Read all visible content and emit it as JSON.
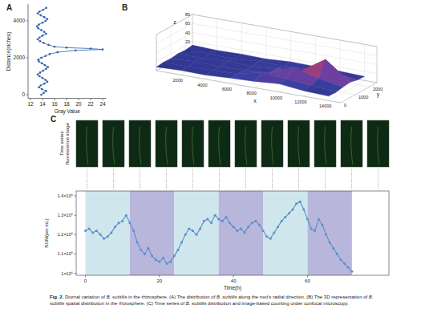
{
  "chart_data": [
    {
      "type": "scatter",
      "panel": "A",
      "x_label": "Gray Value",
      "y_label": "Distance(inches)",
      "color": "#2f5fae",
      "marker": "circle",
      "line_style": "solid",
      "x": [
        13.8,
        14.2,
        14.6,
        13.9,
        13.4,
        13.7,
        14.3,
        14.8,
        14.5,
        14.0,
        13.5,
        13.2,
        13.6,
        14.1,
        14.6,
        14.9,
        14.4,
        13.9,
        13.4,
        13.3,
        13.8,
        14.5,
        15.2,
        16.5,
        19.5,
        24.0,
        22.0,
        18.0,
        16.0,
        15.0,
        14.2,
        13.6,
        13.2,
        13.5,
        14.0,
        14.6,
        14.3,
        13.8,
        13.3,
        13.1,
        13.4,
        14.0,
        14.5,
        14.8,
        14.3,
        13.7,
        13.2,
        13.5,
        14.1,
        14.6
      ],
      "values": [
        0,
        100,
        200,
        300,
        400,
        500,
        600,
        700,
        800,
        900,
        1000,
        1100,
        1200,
        1300,
        1400,
        1500,
        1600,
        1700,
        1800,
        1900,
        2000,
        2100,
        2200,
        2300,
        2400,
        2450,
        2500,
        2550,
        2600,
        2700,
        2800,
        2900,
        3000,
        3100,
        3200,
        3300,
        3400,
        3500,
        3600,
        3700,
        3800,
        3900,
        4000,
        4100,
        4200,
        4300,
        4400,
        4500,
        4600,
        4700
      ],
      "xlim": [
        11.6,
        24.6
      ],
      "xticks": [
        12,
        14,
        16,
        18,
        20,
        22,
        24
      ],
      "ylim": [
        -200,
        4900
      ],
      "yticks": [
        0,
        2000,
        4000
      ]
    },
    {
      "type": "surface",
      "panel": "B",
      "x_label": "x",
      "y_label": "y",
      "z_label": "z",
      "x": [
        0,
        2000,
        4000,
        6000,
        8000,
        10000,
        12000,
        14000
      ],
      "y": [
        0,
        500,
        1000,
        1500,
        2000,
        2500
      ],
      "z": [
        [
          8,
          10,
          9,
          12,
          14,
          18,
          12,
          10
        ],
        [
          10,
          9,
          11,
          13,
          25,
          20,
          15,
          9
        ],
        [
          9,
          12,
          10,
          12,
          15,
          38,
          22,
          12
        ],
        [
          11,
          10,
          13,
          11,
          16,
          20,
          55,
          14
        ],
        [
          10,
          11,
          9,
          14,
          12,
          15,
          18,
          10
        ],
        [
          12,
          10,
          11,
          10,
          13,
          12,
          11,
          9
        ]
      ],
      "xlim": [
        0,
        15000
      ],
      "xticks": [
        2000,
        4000,
        6000,
        8000,
        10000,
        12000,
        14000
      ],
      "ylim": [
        0,
        2500
      ],
      "yticks": [
        0,
        1000,
        2000
      ],
      "zlim": [
        0,
        80
      ],
      "zticks": [
        0,
        20,
        40,
        60,
        80
      ]
    },
    {
      "type": "line",
      "panel": "C",
      "x_label": "Time(h)",
      "y_label": "NUM(per mL)",
      "color": "#5b8fc9",
      "marker": "circle",
      "line_style": "solid",
      "x": [
        0,
        1,
        2,
        3,
        4,
        5,
        6,
        7,
        8,
        9,
        10,
        11,
        12,
        13,
        14,
        15,
        16,
        17,
        18,
        19,
        20,
        21,
        22,
        23,
        24,
        25,
        26,
        27,
        28,
        29,
        30,
        31,
        32,
        33,
        34,
        35,
        36,
        37,
        38,
        39,
        40,
        41,
        42,
        43,
        44,
        45,
        46,
        47,
        48,
        49,
        50,
        51,
        52,
        53,
        54,
        55,
        56,
        57,
        58,
        59,
        60,
        61,
        62,
        63,
        64,
        65,
        66,
        67,
        68,
        69,
        70,
        71,
        72
      ],
      "values": [
        1220000,
        1230000,
        1210000,
        1220000,
        1200000,
        1180000,
        1190000,
        1210000,
        1240000,
        1260000,
        1270000,
        1300000,
        1260000,
        1220000,
        1160000,
        1120000,
        1100000,
        1130000,
        1090000,
        1070000,
        1060000,
        1080000,
        1050000,
        1060000,
        1090000,
        1120000,
        1160000,
        1200000,
        1230000,
        1220000,
        1200000,
        1230000,
        1270000,
        1280000,
        1260000,
        1300000,
        1280000,
        1270000,
        1290000,
        1260000,
        1240000,
        1220000,
        1230000,
        1210000,
        1240000,
        1260000,
        1270000,
        1250000,
        1220000,
        1190000,
        1180000,
        1210000,
        1240000,
        1270000,
        1290000,
        1310000,
        1330000,
        1360000,
        1370000,
        1330000,
        1280000,
        1230000,
        1220000,
        1280000,
        1250000,
        1200000,
        1160000,
        1130000,
        1100000,
        1070000,
        1050000,
        1030000,
        1010000
      ],
      "bands": [
        {
          "start": 0,
          "end": 12,
          "color": "#cfe6ec"
        },
        {
          "start": 12,
          "end": 24,
          "color": "#b9b6dc"
        },
        {
          "start": 24,
          "end": 36,
          "color": "#cfe6ec"
        },
        {
          "start": 36,
          "end": 48,
          "color": "#b9b6dc"
        },
        {
          "start": 48,
          "end": 60,
          "color": "#cfe6ec"
        },
        {
          "start": 60,
          "end": 72,
          "color": "#b9b6dc"
        }
      ],
      "xlim": [
        -2.5,
        82
      ],
      "xticks": [
        0,
        20,
        40,
        60
      ],
      "ylim": [
        990000,
        1425000
      ],
      "yticks": [
        {
          "value": 1000000,
          "label": "1×10⁶"
        },
        {
          "value": 1100000,
          "label": "1.1×10⁶"
        },
        {
          "value": 1200000,
          "label": "1.2×10⁶"
        },
        {
          "value": 1300000,
          "label": "1.3×10⁶"
        },
        {
          "value": 1400000,
          "label": "1.4×10⁶"
        }
      ]
    }
  ],
  "figure": {
    "images": {
      "label": [
        "Time series",
        "fluorescence image"
      ],
      "count": 12
    },
    "caption": [
      {
        "text": "Fig. 2.",
        "bold": true
      },
      {
        "text": "  Diurnal variation of "
      },
      {
        "text": "B. subtilis",
        "italic": true
      },
      {
        "text": " in the rhizosphere. (A) The distribution of "
      },
      {
        "text": "B. subtilis",
        "italic": true
      },
      {
        "text": " along the root's radial direction. (B) The 3D representation of "
      },
      {
        "text": "B. subtilis",
        "italic": true
      },
      {
        "text": " spatial distribution in the rhizosphere. (C) Time series of "
      },
      {
        "text": "B. subtilis",
        "italic": true
      },
      {
        "text": " distribution and image-based counting under confocal microscopy."
      }
    ]
  }
}
